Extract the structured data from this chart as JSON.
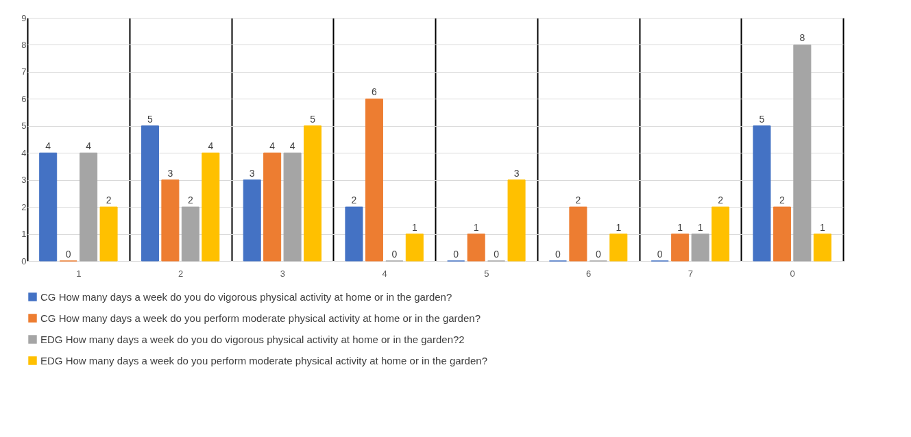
{
  "chart_data": {
    "type": "bar",
    "categories": [
      "1",
      "2",
      "3",
      "4",
      "5",
      "6",
      "7",
      "0"
    ],
    "series": [
      {
        "name": "CG How many days a week do you do vigorous physical activity at home or in the garden?",
        "color": "#4472c4",
        "values": [
          4,
          5,
          3,
          2,
          0,
          0,
          0,
          5
        ]
      },
      {
        "name": "CG How many days a week do you perform moderate physical activity at home or in the garden?",
        "color": "#ed7d31",
        "values": [
          0,
          3,
          4,
          6,
          1,
          2,
          1,
          2
        ]
      },
      {
        "name": "EDG How many days a week do you do vigorous physical activity at home or in the garden?2",
        "color": "#a5a5a5",
        "values": [
          4,
          2,
          4,
          0,
          0,
          0,
          1,
          8
        ]
      },
      {
        "name": "EDG How many days a week do you perform moderate physical activity at home or in the garden?",
        "color": "#ffc000",
        "values": [
          2,
          4,
          5,
          1,
          3,
          1,
          2,
          1
        ]
      }
    ],
    "ylim": [
      0,
      9
    ],
    "yticks": [
      0,
      1,
      2,
      3,
      4,
      5,
      6,
      7,
      8,
      9
    ],
    "grid": true,
    "data_labels": true,
    "legend": "bottom"
  }
}
